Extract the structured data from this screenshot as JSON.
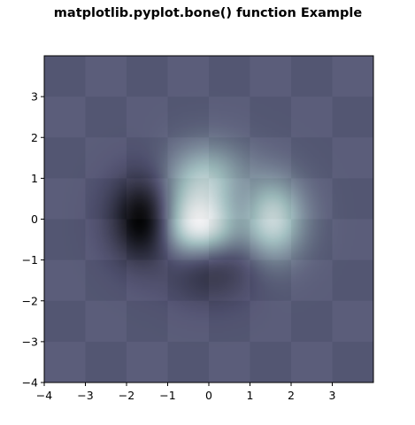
{
  "chart_data": {
    "type": "heatmap",
    "title": "matplotlib.pyplot.bone() function Example",
    "xlabel": "",
    "ylabel": "",
    "xlim": [
      -4,
      4
    ],
    "ylim": [
      -4,
      4
    ],
    "x_ticks": [
      -4,
      -3,
      -2,
      -1,
      0,
      1,
      2,
      3
    ],
    "y_ticks": [
      -4,
      -3,
      -2,
      -1,
      0,
      1,
      2,
      3
    ],
    "x_tick_labels": [
      "−4",
      "−3",
      "−2",
      "−1",
      "0",
      "1",
      "2",
      "3"
    ],
    "y_tick_labels": [
      "−4",
      "−3",
      "−2",
      "−1",
      "0",
      "1",
      "2",
      "3"
    ],
    "grid": false,
    "colormap": "bone",
    "checkerboard": {
      "rows": 8,
      "cols": 8,
      "dark_color": "#2f3244",
      "light_color": "#7d7e90"
    },
    "overlay": {
      "function": "(1 - x/2 + x^5 + y^3) * exp(-(x^2 + y^2))",
      "extent": [
        -4,
        4,
        -4,
        4
      ],
      "alpha": 0.9
    },
    "colors": {
      "axes_edge": "#000000",
      "background": "#ffffff"
    }
  }
}
